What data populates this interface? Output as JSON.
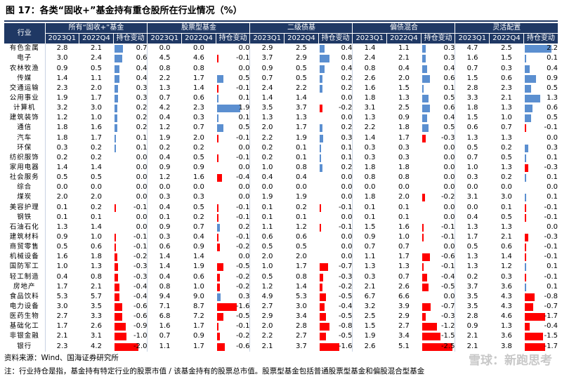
{
  "title": "图 17：各类“固收+”基金持有重仓股所在行业情况（%）",
  "header": {
    "industry": "行业",
    "groups": [
      "所有“固收+”基金",
      "股票型基金",
      "二级债基",
      "偏债混合",
      "灵活配置"
    ],
    "subcols": [
      "2023Q1",
      "2022Q4",
      "持仓变动"
    ]
  },
  "rows": [
    {
      "name": "有色金属",
      "v": [
        [
          2.8,
          2.1,
          0.7
        ],
        [
          0.0,
          0.0,
          0.0
        ],
        [
          2.9,
          2.5,
          0.4
        ],
        [
          1.4,
          1.1,
          0.3
        ],
        [
          4.7,
          2.5,
          2.2
        ]
      ]
    },
    {
      "name": "电子",
      "v": [
        [
          3.0,
          2.4,
          0.6
        ],
        [
          4.5,
          4.6,
          -0.1
        ],
        [
          3.7,
          2.9,
          0.8
        ],
        [
          2.4,
          2.1,
          0.3
        ],
        [
          1.6,
          1.5,
          0.1
        ]
      ]
    },
    {
      "name": "农林牧渔",
      "v": [
        [
          0.9,
          0.5,
          0.4
        ],
        [
          0.8,
          0.8,
          0.0
        ],
        [
          0.9,
          0.5,
          0.4
        ],
        [
          0.8,
          0.4,
          0.4
        ],
        [
          0.7,
          0.3,
          0.4
        ]
      ]
    },
    {
      "name": "传媒",
      "v": [
        [
          1.4,
          1.1,
          0.4
        ],
        [
          2.2,
          1.7,
          0.5
        ],
        [
          0.7,
          0.5,
          0.2
        ],
        [
          2.6,
          2.0,
          0.6
        ],
        [
          1.5,
          0.6,
          0.9
        ]
      ]
    },
    {
      "name": "交通运输",
      "v": [
        [
          2.3,
          2.0,
          0.3
        ],
        [
          1.3,
          1.4,
          -0.1
        ],
        [
          2.4,
          2.2,
          0.2
        ],
        [
          1.6,
          1.5,
          0.1
        ],
        [
          2.8,
          2.3,
          0.5
        ]
      ]
    },
    {
      "name": "公用事业",
      "v": [
        [
          1.9,
          1.7,
          0.3
        ],
        [
          0.7,
          0.6,
          0.1
        ],
        [
          1.4,
          1.4,
          0.0
        ],
        [
          1.8,
          1.3,
          0.5
        ],
        [
          3.3,
          2.1,
          1.3
        ]
      ]
    },
    {
      "name": "计算机",
      "v": [
        [
          3.2,
          3.0,
          0.2
        ],
        [
          4.2,
          2.3,
          1.9
        ],
        [
          3.5,
          3.7,
          -0.2
        ],
        [
          3.1,
          2.5,
          0.6
        ],
        [
          1.8,
          1.3,
          0.6
        ]
      ]
    },
    {
      "name": "建筑装饰",
      "v": [
        [
          1.2,
          1.0,
          0.2
        ],
        [
          0.4,
          0.3,
          0.1
        ],
        [
          1.3,
          1.3,
          0.0
        ],
        [
          1.3,
          0.9,
          0.4
        ],
        [
          1.5,
          1.0,
          0.5
        ]
      ]
    },
    {
      "name": "通信",
      "v": [
        [
          1.8,
          1.6,
          0.2
        ],
        [
          1.2,
          0.7,
          0.5
        ],
        [
          2.0,
          1.7,
          0.2
        ],
        [
          2.2,
          1.8,
          0.5
        ],
        [
          0.6,
          0.7,
          -0.1
        ]
      ]
    },
    {
      "name": "汽车",
      "v": [
        [
          1.8,
          1.7,
          0.1
        ],
        [
          1.9,
          2.0,
          -0.1
        ],
        [
          2.2,
          1.9,
          0.3
        ],
        [
          1.4,
          1.7,
          -0.3
        ],
        [
          1.3,
          1.3,
          0.0
        ]
      ]
    },
    {
      "name": "环保",
      "v": [
        [
          0.3,
          0.2,
          0.1
        ],
        [
          0.2,
          0.2,
          0.0
        ],
        [
          0.2,
          0.1,
          0.1
        ],
        [
          0.3,
          0.3,
          0.0
        ],
        [
          0.5,
          0.2,
          0.3
        ]
      ]
    },
    {
      "name": "纺织服饰",
      "v": [
        [
          0.2,
          0.2,
          0.0
        ],
        [
          0.4,
          0.5,
          -0.1
        ],
        [
          0.2,
          0.1,
          0.1
        ],
        [
          0.3,
          0.3,
          0.0
        ],
        [
          0.7,
          0.5,
          0.1
        ]
      ]
    },
    {
      "name": "家用电器",
      "v": [
        [
          1.4,
          1.4,
          0.0
        ],
        [
          0.9,
          0.9,
          0.0
        ],
        [
          1.0,
          0.8,
          0.2
        ],
        [
          1.8,
          1.8,
          0.0
        ],
        [
          1.0,
          1.3,
          -0.3
        ]
      ]
    },
    {
      "name": "社会服务",
      "v": [
        [
          0.5,
          0.5,
          0.0
        ],
        [
          1.2,
          1.6,
          -0.4
        ],
        [
          0.4,
          0.4,
          0.0
        ],
        [
          0.8,
          0.8,
          0.0
        ],
        [
          0.3,
          0.2,
          0.1
        ]
      ]
    },
    {
      "name": "综合",
      "v": [
        [
          0.0,
          0.0,
          0.0
        ],
        [
          0.0,
          0.0,
          0.0
        ],
        [
          0.0,
          0.0,
          0.0
        ],
        [
          0.0,
          0.0,
          0.0
        ],
        [
          0.0,
          0.0,
          0.0
        ]
      ]
    },
    {
      "name": "煤炭",
      "v": [
        [
          2.0,
          2.0,
          0.0
        ],
        [
          0.3,
          0.3,
          0.0
        ],
        [
          1.9,
          1.9,
          0.0
        ],
        [
          1.8,
          2.0,
          -0.2
        ],
        [
          3.1,
          3.0,
          0.1
        ]
      ]
    },
    {
      "name": "美容护理",
      "v": [
        [
          0.1,
          0.2,
          -0.1
        ],
        [
          0.4,
          0.5,
          -0.1
        ],
        [
          0.1,
          0.2,
          -0.1
        ],
        [
          0.1,
          0.1,
          0.0
        ],
        [
          0.0,
          0.1,
          -0.1
        ]
      ]
    },
    {
      "name": "钢铁",
      "v": [
        [
          0.1,
          0.1,
          0.0
        ],
        [
          0.1,
          0.2,
          -0.1
        ],
        [
          0.1,
          0.1,
          0.0
        ],
        [
          0.1,
          0.1,
          0.0
        ],
        [
          0.4,
          0.5,
          -0.1
        ]
      ]
    },
    {
      "name": "石油石化",
      "v": [
        [
          1.3,
          1.4,
          0.0
        ],
        [
          0.9,
          0.7,
          0.2
        ],
        [
          1.1,
          1.2,
          -0.1
        ],
        [
          1.5,
          1.6,
          -0.1
        ],
        [
          1.3,
          1.3,
          0.0
        ]
      ]
    },
    {
      "name": "建筑材料",
      "v": [
        [
          0.9,
          1.0,
          -0.1
        ],
        [
          0.3,
          0.4,
          -0.1
        ],
        [
          0.6,
          0.6,
          0.0
        ],
        [
          0.9,
          1.0,
          -0.1
        ],
        [
          1.7,
          2.1,
          -0.3
        ]
      ]
    },
    {
      "name": "商贸零售",
      "v": [
        [
          0.5,
          0.6,
          -0.1
        ],
        [
          0.6,
          0.9,
          -0.2
        ],
        [
          0.5,
          0.5,
          0.0
        ],
        [
          0.7,
          0.7,
          0.0
        ],
        [
          0.5,
          0.6,
          -0.1
        ]
      ]
    },
    {
      "name": "机械设备",
      "v": [
        [
          1.6,
          1.8,
          -0.2
        ],
        [
          1.4,
          1.4,
          0.0
        ],
        [
          2.0,
          2.0,
          0.0
        ],
        [
          1.1,
          1.7,
          -0.6
        ],
        [
          1.3,
          1.4,
          -0.1
        ]
      ]
    },
    {
      "name": "国防军工",
      "v": [
        [
          1.0,
          1.3,
          -0.3
        ],
        [
          1.4,
          1.9,
          -0.5
        ],
        [
          1.0,
          1.7,
          -0.7
        ],
        [
          1.3,
          1.3,
          -0.1
        ],
        [
          1.3,
          1.2,
          0.1
        ]
      ]
    },
    {
      "name": "轻工制造",
      "v": [
        [
          0.4,
          0.8,
          -0.3
        ],
        [
          0.4,
          0.6,
          -0.2
        ],
        [
          0.5,
          0.8,
          -0.3
        ],
        [
          0.3,
          0.7,
          -0.4
        ],
        [
          0.2,
          0.3,
          -0.1
        ]
      ]
    },
    {
      "name": "房地产",
      "v": [
        [
          1.7,
          2.1,
          -0.4
        ],
        [
          0.8,
          1.0,
          -0.2
        ],
        [
          1.2,
          1.4,
          -0.2
        ],
        [
          2.1,
          2.6,
          -0.5
        ],
        [
          3.7,
          3.6,
          0.1
        ]
      ]
    },
    {
      "name": "食品饮料",
      "v": [
        [
          5.3,
          5.7,
          -0.4
        ],
        [
          9.4,
          9.0,
          0.3
        ],
        [
          4.9,
          5.3,
          -0.5
        ],
        [
          6.7,
          6.6,
          0.0
        ],
        [
          3.5,
          4.3,
          -0.8
        ]
      ]
    },
    {
      "name": "电力设备",
      "v": [
        [
          3.0,
          3.5,
          -0.6
        ],
        [
          7.1,
          8.7,
          -1.6
        ],
        [
          2.7,
          3.0,
          -0.4
        ],
        [
          3.2,
          3.9,
          -0.7
        ],
        [
          3.5,
          4.3,
          -0.7
        ]
      ]
    },
    {
      "name": "医药生物",
      "v": [
        [
          2.7,
          3.3,
          -0.6
        ],
        [
          6.8,
          7.2,
          -0.5
        ],
        [
          2.9,
          3.4,
          -0.5
        ],
        [
          2.5,
          2.9,
          -0.3
        ],
        [
          2.8,
          4.6,
          -1.7
        ]
      ]
    },
    {
      "name": "基础化工",
      "v": [
        [
          1.7,
          2.6,
          -0.9
        ],
        [
          1.6,
          1.7,
          -0.1
        ],
        [
          2.0,
          2.8,
          -0.8
        ],
        [
          1.5,
          2.7,
          -1.2
        ],
        [
          0.9,
          1.3,
          -0.4
        ]
      ]
    },
    {
      "name": "非银金融",
      "v": [
        [
          2.1,
          3.1,
          -1.0
        ],
        [
          0.7,
          0.9,
          -0.2
        ],
        [
          2.2,
          2.7,
          -0.5
        ],
        [
          1.9,
          3.4,
          -1.5
        ],
        [
          2.1,
          3.6,
          -1.5
        ]
      ]
    },
    {
      "name": "银行",
      "v": [
        [
          2.3,
          4.2,
          -2.0
        ],
        [
          1.1,
          1.7,
          -0.6
        ],
        [
          2.1,
          3.7,
          -1.6
        ],
        [
          2.6,
          5.1,
          -2.5
        ],
        [
          2.1,
          3.8,
          -1.7
        ]
      ]
    }
  ],
  "footer": {
    "source": "资料来源：Wind、国海证券研究所",
    "note": "注：行业持仓是指，基金持有特定行业的股票市值 / 该基金持有的股票总市值。股票型基金包括普通股票型基金和偏股混合型基金",
    "watermark": "雪球：新跑思考"
  },
  "colors": {
    "header_bg": "#1f3864",
    "bar_pos": "#5b8fd0",
    "bar_neg": "#ff0000"
  }
}
